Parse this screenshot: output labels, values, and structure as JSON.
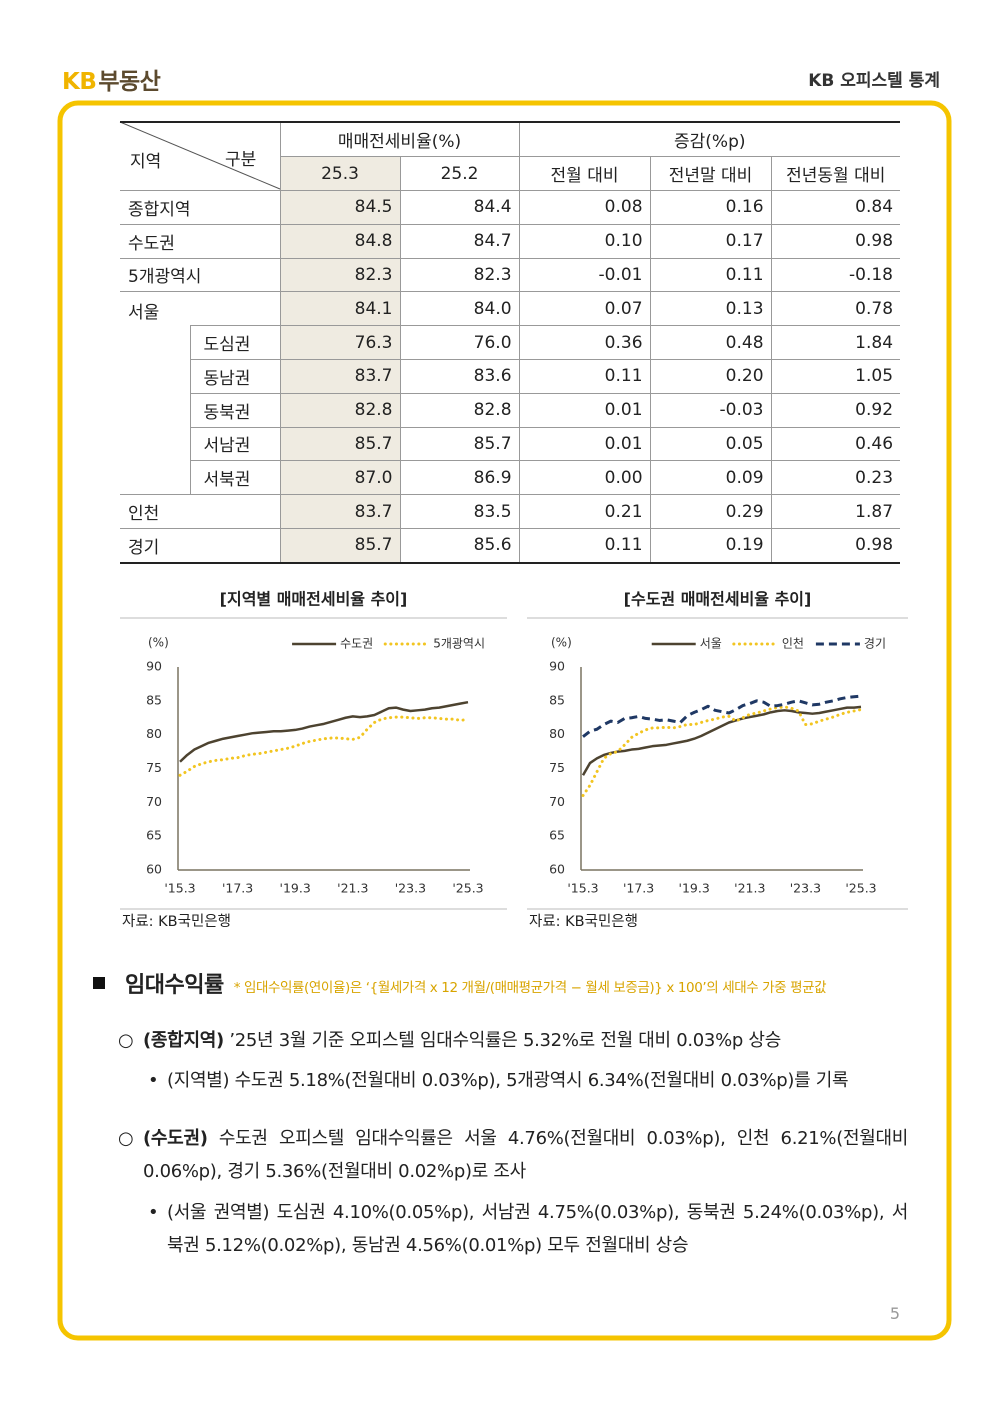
{
  "header": {
    "brand_kb": "KB",
    "brand_name": "부동산",
    "title": "KB 오피스텔 통계"
  },
  "table": {
    "corner_col": "지역",
    "corner_row": "구분",
    "group1": "매매전세비율(%)",
    "group2": "증감(%p)",
    "columns": [
      "25.3",
      "25.2",
      "전월 대비",
      "전년말 대비",
      "전년동월 대비"
    ],
    "rows": [
      {
        "name": "종합지역",
        "values": [
          "84.5",
          "84.4",
          "0.08",
          "0.16",
          "0.84"
        ]
      },
      {
        "name": "수도권",
        "values": [
          "84.8",
          "84.7",
          "0.10",
          "0.17",
          "0.98"
        ]
      },
      {
        "name": "5개광역시",
        "values": [
          "82.3",
          "82.3",
          "-0.01",
          "0.11",
          "-0.18"
        ]
      },
      {
        "name": "서울",
        "values": [
          "84.1",
          "84.0",
          "0.07",
          "0.13",
          "0.78"
        ],
        "districts": [
          {
            "name": "도심권",
            "values": [
              "76.3",
              "76.0",
              "0.36",
              "0.48",
              "1.84"
            ]
          },
          {
            "name": "동남권",
            "values": [
              "83.7",
              "83.6",
              "0.11",
              "0.20",
              "1.05"
            ]
          },
          {
            "name": "동북권",
            "values": [
              "82.8",
              "82.8",
              "0.01",
              "-0.03",
              "0.92"
            ]
          },
          {
            "name": "서남권",
            "values": [
              "85.7",
              "85.7",
              "0.01",
              "0.05",
              "0.46"
            ]
          },
          {
            "name": "서북권",
            "values": [
              "87.0",
              "86.9",
              "0.00",
              "0.09",
              "0.23"
            ]
          }
        ]
      },
      {
        "name": "인천",
        "values": [
          "83.7",
          "83.5",
          "0.21",
          "0.29",
          "1.87"
        ]
      },
      {
        "name": "경기",
        "values": [
          "85.7",
          "85.6",
          "0.11",
          "0.19",
          "0.98"
        ]
      }
    ]
  },
  "chart_data": [
    {
      "type": "line",
      "title": "[지역별 매매전세비율 추이]",
      "ylabel": "(%)",
      "categories": [
        "'15.3",
        null,
        null,
        null,
        null,
        null,
        null,
        null,
        "'17.3",
        null,
        null,
        null,
        null,
        null,
        null,
        null,
        "'19.3",
        null,
        null,
        null,
        null,
        null,
        null,
        null,
        "'21.3",
        null,
        null,
        null,
        null,
        null,
        null,
        null,
        "'23.3",
        null,
        null,
        null,
        null,
        null,
        null,
        null,
        "'25.3"
      ],
      "series": [
        {
          "name": "수도권",
          "color": "#4d4330",
          "linestyle": "solid",
          "values": [
            76.0,
            77.0,
            77.8,
            78.3,
            78.8,
            79.1,
            79.4,
            79.6,
            79.8,
            80.0,
            80.2,
            80.3,
            80.4,
            80.5,
            80.5,
            80.6,
            80.7,
            80.9,
            81.2,
            81.4,
            81.6,
            81.9,
            82.2,
            82.5,
            82.7,
            82.6,
            82.7,
            82.9,
            83.4,
            83.9,
            84.0,
            83.7,
            83.5,
            83.6,
            83.7,
            83.9,
            84.0,
            84.2,
            84.4,
            84.6,
            84.8
          ]
        },
        {
          "name": "5개광역시",
          "color": "#f2c521",
          "linestyle": "dotted",
          "values": [
            74.0,
            74.6,
            75.3,
            75.7,
            76.0,
            76.2,
            76.3,
            76.5,
            76.6,
            76.9,
            77.1,
            77.2,
            77.4,
            77.6,
            77.8,
            78.0,
            78.3,
            78.7,
            79.0,
            79.2,
            79.4,
            79.5,
            79.5,
            79.4,
            79.3,
            79.6,
            80.8,
            81.8,
            82.3,
            82.5,
            82.6,
            82.6,
            82.5,
            82.4,
            82.5,
            82.5,
            82.4,
            82.3,
            82.3,
            82.1,
            82.3
          ]
        }
      ],
      "ylim": [
        60,
        90
      ],
      "yticks": [
        60,
        65,
        70,
        75,
        80,
        85,
        90
      ],
      "legend": "upper right",
      "source": "자료: KB국민은행"
    },
    {
      "type": "line",
      "title": "[수도권 매매전세비율 추이]",
      "ylabel": "(%)",
      "categories": [
        "'15.3",
        null,
        null,
        null,
        null,
        null,
        null,
        null,
        "'17.3",
        null,
        null,
        null,
        null,
        null,
        null,
        null,
        "'19.3",
        null,
        null,
        null,
        null,
        null,
        null,
        null,
        "'21.3",
        null,
        null,
        null,
        null,
        null,
        null,
        null,
        "'23.3",
        null,
        null,
        null,
        null,
        null,
        null,
        null,
        "'25.3"
      ],
      "series": [
        {
          "name": "서울",
          "color": "#4d4330",
          "linestyle": "solid",
          "values": [
            74.0,
            75.8,
            76.5,
            77.0,
            77.3,
            77.5,
            77.6,
            77.8,
            77.9,
            78.1,
            78.3,
            78.4,
            78.5,
            78.7,
            78.9,
            79.1,
            79.4,
            79.8,
            80.3,
            80.8,
            81.3,
            81.8,
            82.1,
            82.4,
            82.6,
            82.8,
            83.0,
            83.3,
            83.5,
            83.6,
            83.5,
            83.3,
            83.2,
            83.1,
            83.2,
            83.4,
            83.6,
            83.8,
            84.0,
            84.0,
            84.1
          ]
        },
        {
          "name": "인천",
          "color": "#f2c521",
          "linestyle": "dotted",
          "values": [
            71.0,
            72.5,
            74.5,
            76.5,
            77.2,
            77.5,
            78.5,
            79.6,
            80.2,
            80.7,
            81.0,
            81.0,
            81.1,
            81.0,
            81.2,
            81.5,
            81.5,
            81.8,
            82.1,
            82.3,
            82.6,
            82.7,
            82.0,
            82.5,
            83.0,
            83.2,
            83.5,
            83.8,
            84.0,
            84.1,
            83.9,
            83.5,
            81.5,
            81.6,
            82.0,
            82.3,
            82.6,
            83.0,
            83.3,
            83.5,
            83.7
          ]
        },
        {
          "name": "경기",
          "color": "#1f3864",
          "linestyle": "dashed",
          "values": [
            79.7,
            80.5,
            80.8,
            81.5,
            82.0,
            81.8,
            82.4,
            82.5,
            82.7,
            82.4,
            82.3,
            82.1,
            82.2,
            82.0,
            81.8,
            82.8,
            83.3,
            83.7,
            84.2,
            83.6,
            83.4,
            83.2,
            83.7,
            84.3,
            84.6,
            85.0,
            84.8,
            84.2,
            84.3,
            84.5,
            84.8,
            85.0,
            84.7,
            84.4,
            84.5,
            84.8,
            85.0,
            85.3,
            85.5,
            85.6,
            85.7
          ]
        }
      ],
      "ylim": [
        60,
        90
      ],
      "yticks": [
        60,
        65,
        70,
        75,
        80,
        85,
        90
      ],
      "legend": "upper right",
      "source": "자료: KB국민은행"
    }
  ],
  "section": {
    "title": "임대수익률",
    "note": "* 임대수익률(연이율)은 ‘{월세가격 x 12 개월/(매매평균가격 − 월세 보증금)} x 100’의 세대수 가중 평균값",
    "items": [
      {
        "label": "(종합지역)",
        "text": " ’25년 3월 기준 오피스텔 임대수익률은 5.32%로 전월 대비 0.03%p 상승",
        "sub": "(지역별) 수도권 5.18%(전월대비 0.03%p), 5개광역시 6.34%(전월대비 0.03%p)를 기록"
      },
      {
        "label": "(수도권)",
        "text": " 수도권 오피스텔 임대수익률은 서울 4.76%(전월대비 0.03%p), 인천 6.21%(전월대비 0.06%p), 경기 5.36%(전월대비 0.02%p)로 조사",
        "sub": "(서울 권역별) 도심권 4.10%(0.05%p), 서남권 4.75%(0.03%p), 동북권 5.24%(0.03%p), 서북권 5.12%(0.02%p), 동남권 4.56%(0.01%p) 모두 전월대비 상승"
      }
    ]
  },
  "page_number": "5"
}
